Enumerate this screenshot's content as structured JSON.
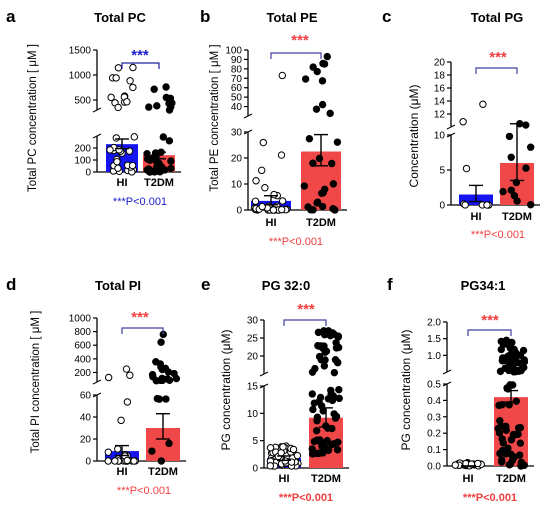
{
  "colors": {
    "hi_bar": "#1414f0",
    "t2dm_bar": "#f04848",
    "sig_blue": "#2020d0",
    "sig_red": "#f04040",
    "bracket_blue": "#2020a0",
    "bracket_red": "#4040a0",
    "axis": "#000000"
  },
  "chart_data": [
    {
      "type": "bar",
      "panel_label": "a",
      "title": "Total PC",
      "ylabel": "Total PC concentration   [ μM ]",
      "categories": [
        "HI",
        "T2DM"
      ],
      "values": [
        232,
        140
      ],
      "error": [
        [
          195,
          275
        ],
        [
          110,
          165
        ]
      ],
      "broken_axis": true,
      "ylim_lower": [
        0,
        300
      ],
      "ylim_upper": [
        300,
        1500
      ],
      "yticks_lower": [
        "0",
        "100",
        "200"
      ],
      "yticks_upper": [
        "500",
        "1000",
        "1500"
      ],
      "significance": "***",
      "pvalue": "***P<0.001",
      "pvalue_color": "blue"
    },
    {
      "type": "bar",
      "panel_label": "b",
      "title": "Total PE",
      "ylabel": "Total PE concentration   [ μM ]",
      "categories": [
        "HI",
        "T2DM"
      ],
      "values": [
        3.5,
        22.5
      ],
      "error": [
        [
          2.0,
          5.5
        ],
        [
          17,
          29
        ]
      ],
      "broken_axis": true,
      "ylim_lower": [
        0,
        30
      ],
      "ylim_upper": [
        30,
        100
      ],
      "yticks_lower": [
        "0",
        "10",
        "20",
        "30"
      ],
      "yticks_upper": [
        "40",
        "50",
        "60",
        "70",
        "80",
        "90",
        "100"
      ],
      "significance": "***",
      "pvalue": "***P<0.001",
      "pvalue_color": "red"
    },
    {
      "type": "bar",
      "panel_label": "c",
      "title": "Total PG",
      "ylabel": "Concentration (μM)",
      "categories": [
        "HI",
        "T2DM"
      ],
      "values": [
        1.5,
        6.0
      ],
      "error": [
        [
          0.5,
          2.8
        ],
        [
          3.5,
          10.5
        ]
      ],
      "broken_axis": true,
      "ylim_lower": [
        0,
        10
      ],
      "ylim_upper": [
        10,
        20
      ],
      "yticks_lower": [
        "0",
        "5",
        "10"
      ],
      "yticks_upper": [
        "12",
        "14",
        "16",
        "18",
        "20"
      ],
      "significance": "***",
      "pvalue": "***P<0.001",
      "pvalue_color": "red"
    },
    {
      "type": "bar",
      "panel_label": "d",
      "title": "Total PI",
      "ylabel": "Total PI concentration   [ μM ]",
      "categories": [
        "HI",
        "T2DM"
      ],
      "values": [
        9,
        30
      ],
      "error": [
        [
          5,
          14
        ],
        [
          20,
          43
        ]
      ],
      "broken_axis": true,
      "ylim_lower": [
        0,
        60
      ],
      "ylim_upper": [
        60,
        1000
      ],
      "yticks_lower": [
        "0",
        "20",
        "40",
        "60"
      ],
      "yticks_upper": [
        "200",
        "400",
        "600",
        "800",
        "1000"
      ],
      "significance": "***",
      "pvalue": "***P<0.001",
      "pvalue_color": "red"
    },
    {
      "type": "bar",
      "panel_label": "e",
      "title": "PG 32:0",
      "ylabel": "PG concentration (μM)",
      "categories": [
        "HI",
        "T2DM"
      ],
      "values": [
        1.8,
        9.2
      ],
      "error": [
        [
          1.4,
          2.2
        ],
        [
          7.5,
          11.0
        ]
      ],
      "broken_axis": true,
      "ylim_lower": [
        0,
        15
      ],
      "ylim_upper": [
        15,
        30
      ],
      "yticks_lower": [
        "0",
        "5",
        "10",
        "15"
      ],
      "yticks_upper": [
        "20",
        "25",
        "30"
      ],
      "significance": "***",
      "pvalue": "***P<0.001",
      "pvalue_color": "red"
    },
    {
      "type": "bar",
      "panel_label": "f",
      "title": "PG34:1",
      "ylabel": "PG concentration (μM)",
      "categories": [
        "HI",
        "T2DM"
      ],
      "values": [
        0.0,
        0.42
      ],
      "error": [
        [
          0.0,
          0.0
        ],
        [
          0.39,
          0.46
        ]
      ],
      "broken_axis": true,
      "ylim_lower": [
        0,
        0.5
      ],
      "ylim_upper": [
        0.5,
        2.0
      ],
      "yticks_lower": [
        "0.0",
        "0.1",
        "0.2",
        "0.3",
        "0.4",
        "0.5"
      ],
      "yticks_upper": [
        "1.0",
        "1.5",
        "2.0"
      ],
      "significance": "***",
      "pvalue": "***P<0.001",
      "pvalue_color": "red"
    }
  ]
}
